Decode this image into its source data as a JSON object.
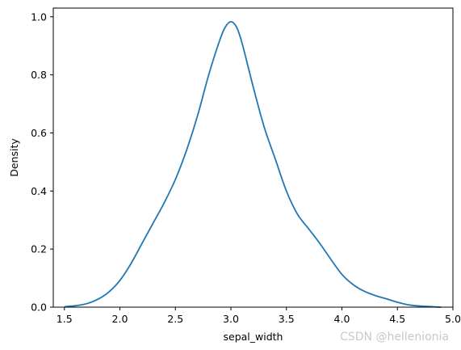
{
  "chart_data": {
    "type": "line",
    "xlabel": "sepal_width",
    "ylabel": "Density",
    "xlim": [
      1.4,
      5.0
    ],
    "ylim": [
      0.0,
      1.03
    ],
    "xticks": [
      "1.5",
      "2.0",
      "2.5",
      "3.0",
      "3.5",
      "4.0",
      "4.5",
      "5.0"
    ],
    "yticks": [
      "0.0",
      "0.2",
      "0.4",
      "0.6",
      "0.8",
      "1.0"
    ],
    "grid": false,
    "series": [
      {
        "color": "#1f77b4",
        "x": [
          1.51,
          1.6,
          1.7,
          1.8,
          1.9,
          2.0,
          2.1,
          2.2,
          2.3,
          2.4,
          2.5,
          2.6,
          2.7,
          2.8,
          2.9,
          2.95,
          3.0,
          3.05,
          3.1,
          3.2,
          3.3,
          3.4,
          3.5,
          3.6,
          3.7,
          3.8,
          3.9,
          4.0,
          4.1,
          4.2,
          4.3,
          4.4,
          4.5,
          4.6,
          4.7,
          4.89
        ],
        "y": [
          0.002,
          0.005,
          0.012,
          0.027,
          0.052,
          0.092,
          0.15,
          0.22,
          0.29,
          0.36,
          0.44,
          0.54,
          0.66,
          0.8,
          0.92,
          0.965,
          0.983,
          0.965,
          0.91,
          0.76,
          0.62,
          0.51,
          0.4,
          0.32,
          0.27,
          0.22,
          0.165,
          0.113,
          0.078,
          0.055,
          0.04,
          0.029,
          0.017,
          0.008,
          0.004,
          0.0
        ]
      }
    ]
  },
  "watermark": "CSDN @hellenionia"
}
